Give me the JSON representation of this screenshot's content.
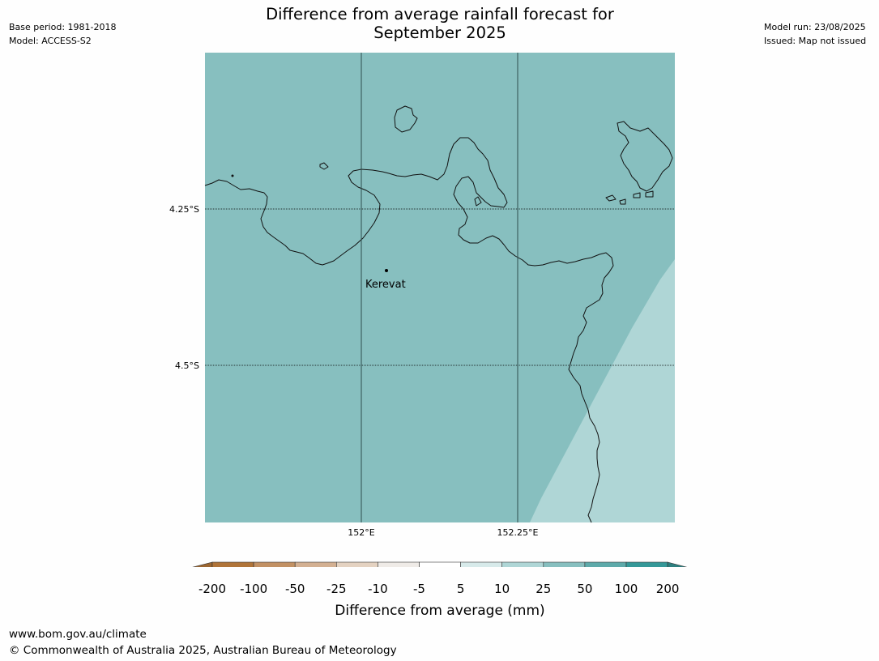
{
  "header": {
    "title_line1": "Difference from average rainfall forecast for",
    "title_line2": "September 2025",
    "base_period": "Base period: 1981-2018",
    "model": "Model: ACCESS-S2",
    "model_run": "Model run: 23/08/2025",
    "issued": "Issued: Map not issued"
  },
  "map": {
    "lat_labels": [
      "4.25°S",
      "4.5°S"
    ],
    "lon_labels": [
      "152°E",
      "152.25°E"
    ],
    "place": "Kerevat",
    "colors": {
      "background": "#87bfbf",
      "light_region": "#afd6d6",
      "coast": "#111111",
      "grid": "#2f4f4f"
    }
  },
  "colorbar": {
    "title": "Difference from average (mm)",
    "labels": [
      "-200",
      "-100",
      "-50",
      "-25",
      "-10",
      "-5",
      "5",
      "10",
      "25",
      "50",
      "100",
      "200"
    ],
    "colors": [
      "#9b6631",
      "#b07439",
      "#c29164",
      "#d3b092",
      "#e4d2c1",
      "#efebe7",
      "#ffffff",
      "#d7eaea",
      "#afd6d6",
      "#87bfbf",
      "#5eaaaa",
      "#359898",
      "#2d7f7f"
    ]
  },
  "footer": {
    "website": "www.bom.gov.au/climate",
    "copyright": "© Commonwealth of Australia 2025, Australian Bureau of Meteorology"
  }
}
